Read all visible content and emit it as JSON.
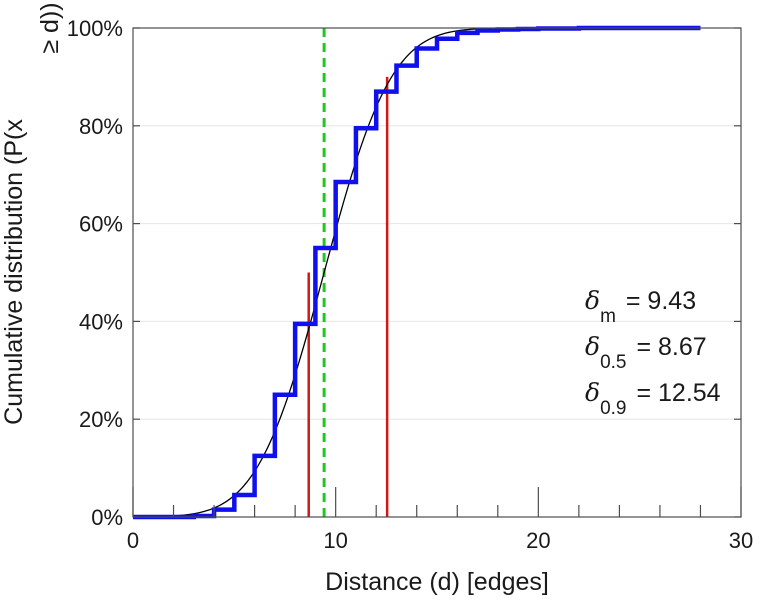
{
  "chart_data": {
    "type": "line",
    "xlabel": "Distance (d) [edges]",
    "ylabel_parts": [
      "Cumulative distribution (P(x",
      "≥ d))"
    ],
    "xlim": [
      0,
      30
    ],
    "ylim": [
      0,
      1
    ],
    "x_ticks": [
      0,
      10,
      20,
      30
    ],
    "x_minor_ticks": [
      0,
      2,
      4,
      6,
      8,
      10,
      12,
      14,
      16,
      18,
      20,
      22,
      24,
      26,
      28,
      30
    ],
    "y_ticks": [
      0,
      0.2,
      0.4,
      0.6,
      0.8,
      1.0
    ],
    "y_tick_labels": [
      "0%",
      "20%",
      "40%",
      "60%",
      "80%",
      "100%"
    ],
    "grid": true,
    "series": [
      {
        "role": "empirical-step",
        "color": "#1010ee",
        "x": [
          0,
          3,
          4,
          5,
          6,
          7,
          8,
          9,
          10,
          11,
          12,
          13,
          14,
          15,
          16,
          17,
          18,
          19,
          20,
          22,
          28
        ],
        "y": [
          0,
          0.002,
          0.015,
          0.045,
          0.125,
          0.25,
          0.395,
          0.55,
          0.685,
          0.795,
          0.87,
          0.923,
          0.958,
          0.978,
          0.99,
          0.995,
          0.997,
          0.998,
          0.999,
          1.0,
          1.0
        ]
      },
      {
        "role": "fitted-curve",
        "color": "#000000",
        "mean": 9.43,
        "sd": 2.6,
        "x_range": [
          0,
          28
        ]
      }
    ],
    "vlines": [
      {
        "role": "mean",
        "x": 9.43,
        "y_top": 1.0,
        "color": "#1ec81e",
        "dashed": true
      },
      {
        "role": "median",
        "x": 8.67,
        "y_top": 0.5,
        "color": "#d01818",
        "dashed": false
      },
      {
        "role": "p90",
        "x": 12.54,
        "y_top": 0.9,
        "color": "#d01818",
        "dashed": false
      }
    ],
    "annotations": [
      {
        "symbol": "δ",
        "sub": "m",
        "text": "= 9.43"
      },
      {
        "symbol": "δ",
        "sub": "0.5",
        "text": "= 8.67"
      },
      {
        "symbol": "δ",
        "sub": "0.9",
        "text": "= 12.54"
      }
    ]
  }
}
